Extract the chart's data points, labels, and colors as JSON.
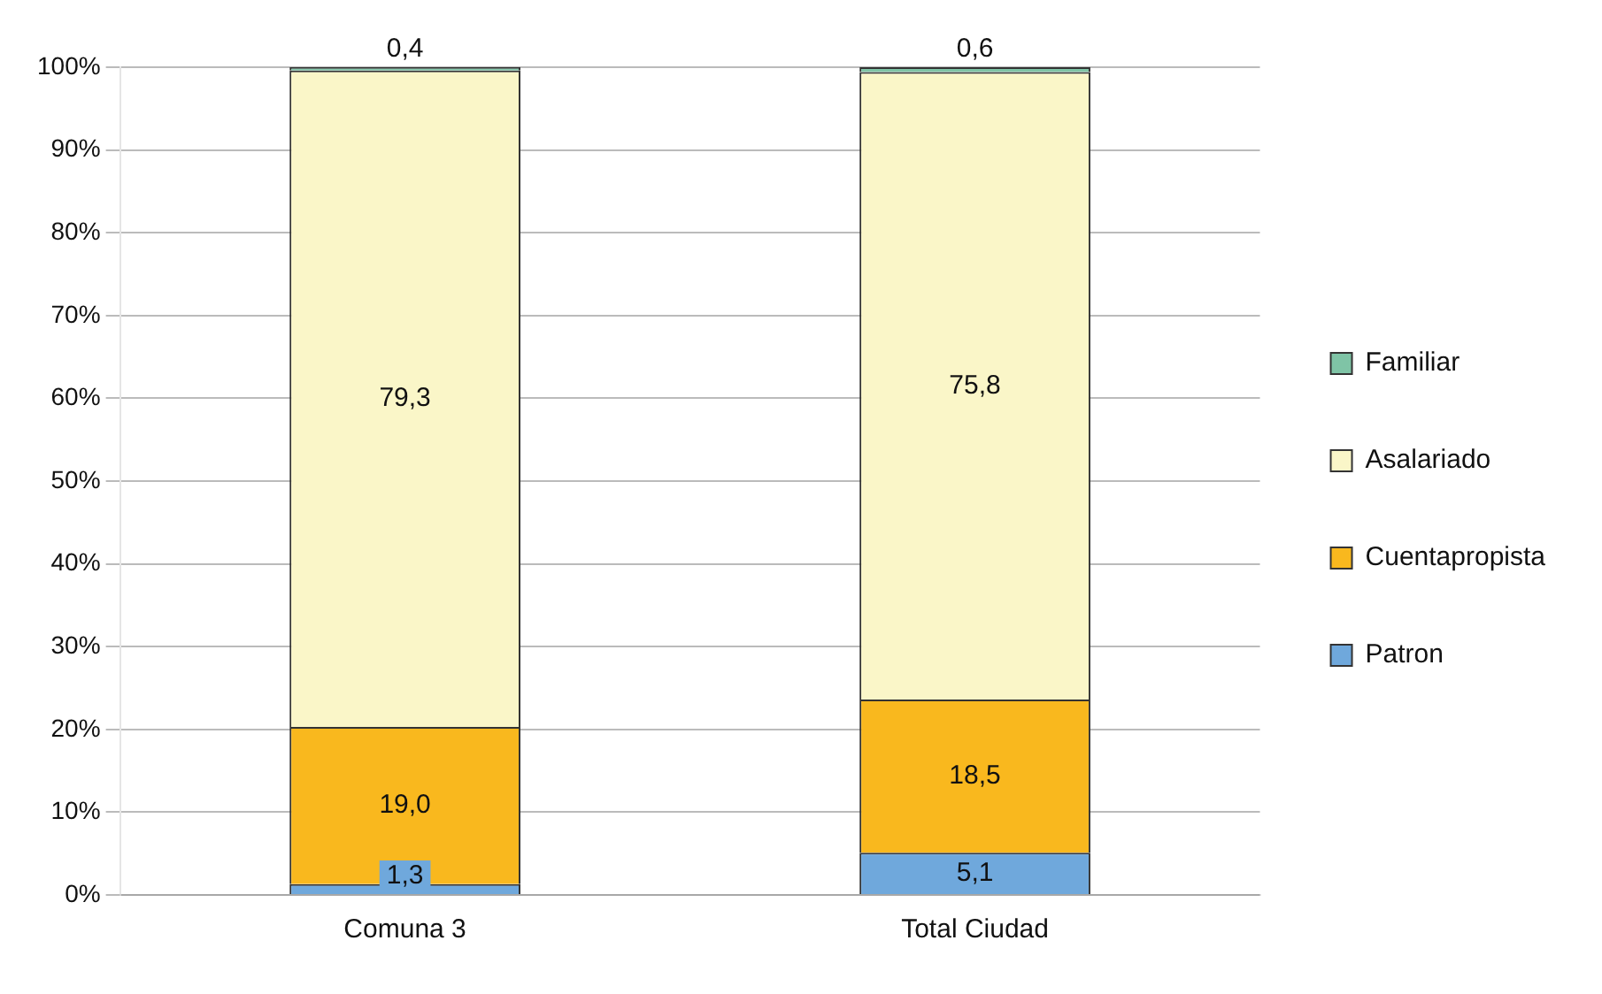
{
  "chart_data": {
    "type": "bar",
    "stacked": true,
    "categories": [
      "Comuna 3",
      "Total Ciudad"
    ],
    "series": [
      {
        "name": "Patron",
        "color": "#6fa8dc",
        "values": [
          1.3,
          5.1
        ],
        "value_labels": [
          "1,3",
          "5,1"
        ]
      },
      {
        "name": "Cuentapropista",
        "color": "#f9b81e",
        "values": [
          19.0,
          18.5
        ],
        "value_labels": [
          "19,0",
          "18,5"
        ]
      },
      {
        "name": "Asalariado",
        "color": "#faf6c8",
        "values": [
          79.3,
          75.8
        ],
        "value_labels": [
          "79,3",
          "75,8"
        ]
      },
      {
        "name": "Familiar",
        "color": "#7fc4a6",
        "values": [
          0.4,
          0.6
        ],
        "value_labels": [
          "0,4",
          "0,6"
        ]
      }
    ],
    "ylim": [
      0,
      100
    ],
    "yticks": [
      {
        "value": 0,
        "label": "0%"
      },
      {
        "value": 10,
        "label": "10%"
      },
      {
        "value": 20,
        "label": "20%"
      },
      {
        "value": 30,
        "label": "30%"
      },
      {
        "value": 40,
        "label": "40%"
      },
      {
        "value": 50,
        "label": "50%"
      },
      {
        "value": 60,
        "label": "60%"
      },
      {
        "value": 70,
        "label": "70%"
      },
      {
        "value": 80,
        "label": "80%"
      },
      {
        "value": 90,
        "label": "90%"
      },
      {
        "value": 100,
        "label": "100%"
      }
    ],
    "grid": "y",
    "legend": "right"
  }
}
